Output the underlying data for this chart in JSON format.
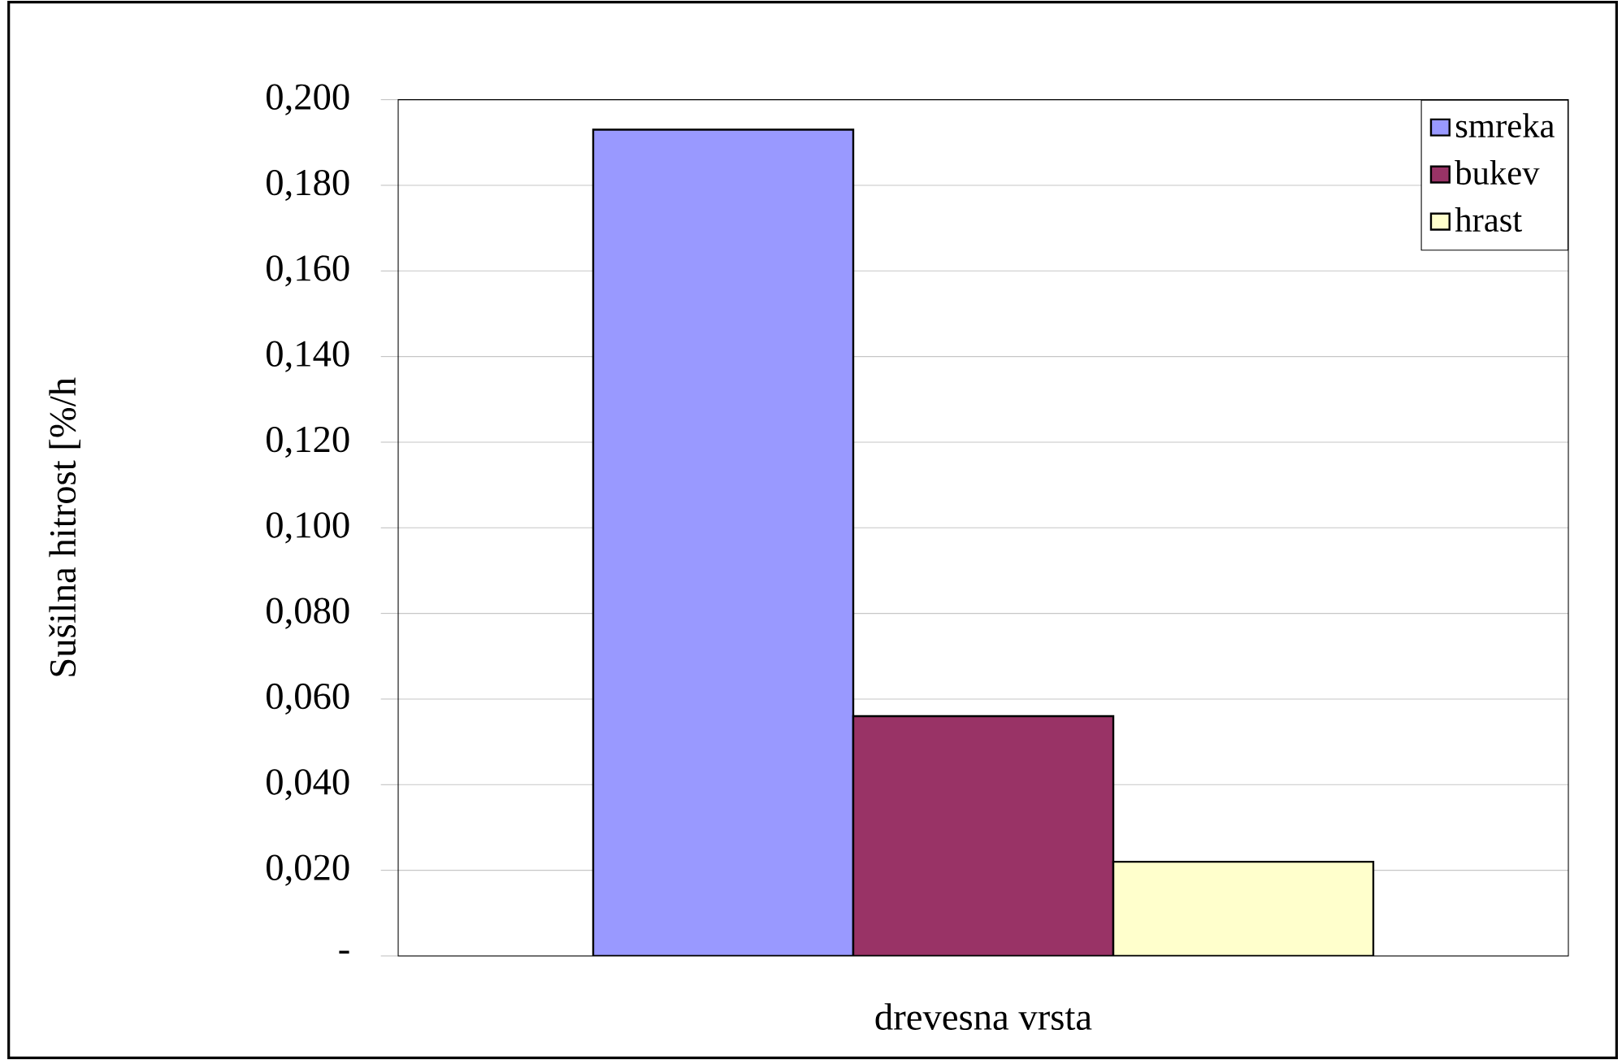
{
  "chart_data": {
    "type": "bar",
    "xlabel": "drevesna vrsta",
    "ylabel": "Sušilna hitrost [%/h",
    "categories": [
      null
    ],
    "series": [
      {
        "name": "smreka",
        "color": "#9999ff",
        "values": [
          0.193
        ]
      },
      {
        "name": "bukev",
        "color": "#993366",
        "values": [
          0.056
        ]
      },
      {
        "name": "hrast",
        "color": "#ffffcc",
        "values": [
          0.022
        ]
      }
    ],
    "ylim": [
      0,
      0.2
    ],
    "yticks": [
      {
        "value": 0,
        "label": "-"
      },
      {
        "value": 0.02,
        "label": "0,020"
      },
      {
        "value": 0.04,
        "label": "0,040"
      },
      {
        "value": 0.06,
        "label": "0,060"
      },
      {
        "value": 0.08,
        "label": "0,080"
      },
      {
        "value": 0.1,
        "label": "0,100"
      },
      {
        "value": 0.12,
        "label": "0,120"
      },
      {
        "value": 0.14,
        "label": "0,140"
      },
      {
        "value": 0.16,
        "label": "0,160"
      },
      {
        "value": 0.18,
        "label": "0,180"
      },
      {
        "value": 0.2,
        "label": "0,200"
      }
    ],
    "grid": "y",
    "legend": "top right"
  }
}
